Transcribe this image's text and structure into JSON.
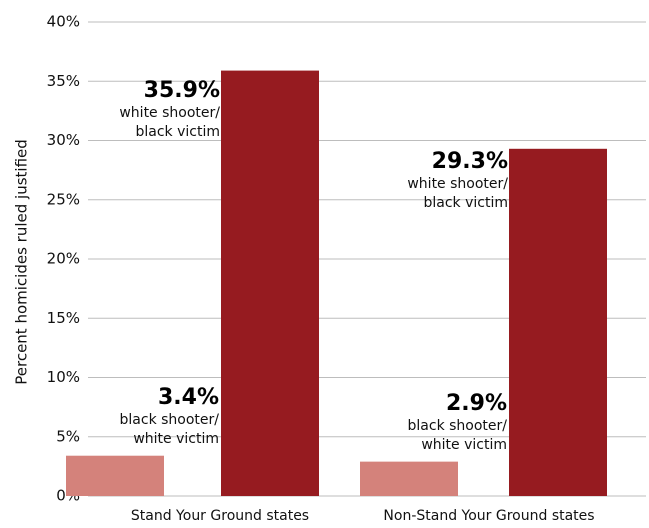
{
  "chart_data": {
    "type": "bar",
    "title": "",
    "xlabel": "",
    "ylabel": "Percent homicides ruled justified",
    "ylim": [
      0,
      40
    ],
    "yticks": [
      0,
      5,
      10,
      15,
      20,
      25,
      30,
      35,
      40
    ],
    "ytick_labels": [
      "0%",
      "5%",
      "10%",
      "15%",
      "20%",
      "25%",
      "30%",
      "35%",
      "40%"
    ],
    "grid": true,
    "categories": [
      "Stand Your Ground states",
      "Non-Stand Your Ground states"
    ],
    "series": [
      {
        "label_lines": [
          "black shooter/",
          "white victim"
        ],
        "color": "#d4827b",
        "values": [
          3.4,
          2.9
        ],
        "value_labels": [
          "3.4%",
          "2.9%"
        ]
      },
      {
        "label_lines": [
          "white shooter/",
          "black victim"
        ],
        "color": "#961b20",
        "values": [
          35.9,
          29.3
        ],
        "value_labels": [
          "35.9%",
          "29.3%"
        ]
      }
    ]
  }
}
